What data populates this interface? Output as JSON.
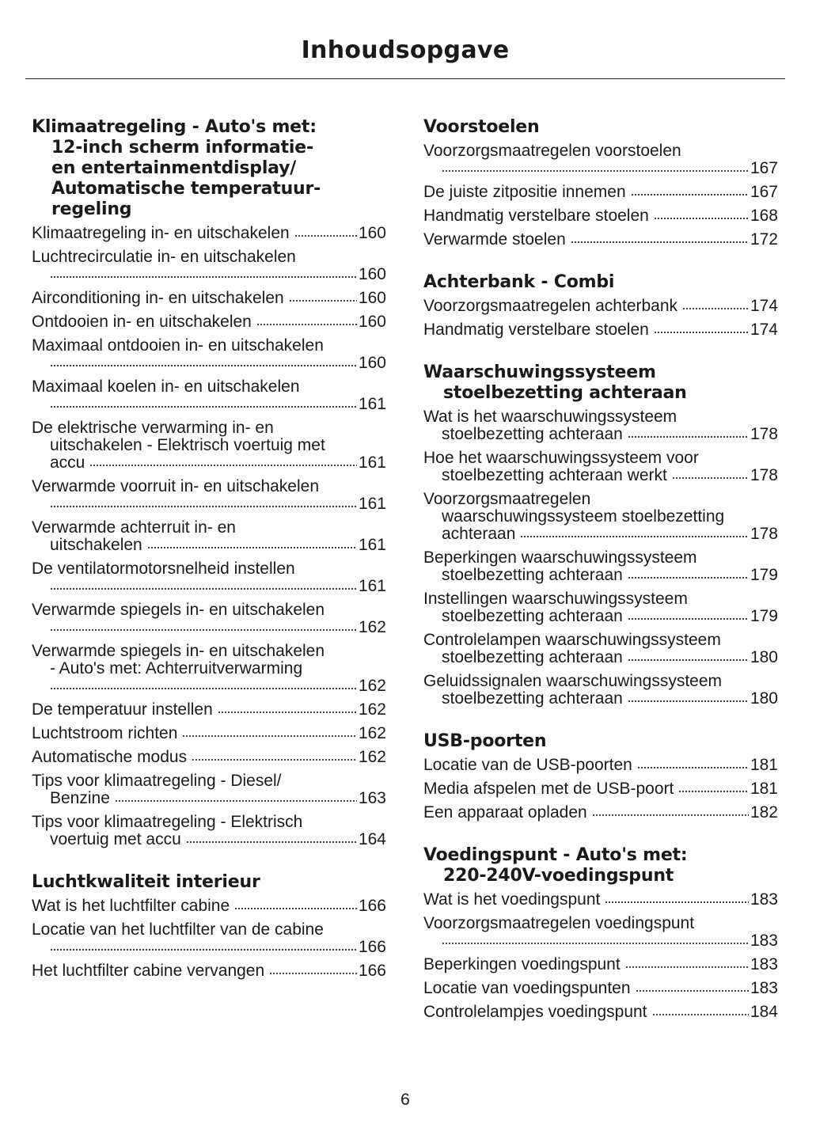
{
  "title": "Inhoudsopgave",
  "page_number": "6",
  "columns": [
    {
      "sections": [
        {
          "heading": [
            "Klimaatregeling - Auto's met:",
            "12-inch scherm informatie-",
            "en entertainmentdisplay/",
            "Automatische temperatuur-",
            "regeling"
          ],
          "entries": [
            {
              "lines": [
                "Klimaatregeling in- en uitschakelen"
              ],
              "page": "160"
            },
            {
              "lines": [
                "Luchtrecirculatie in- en uitschakelen",
                ""
              ],
              "page": "160"
            },
            {
              "lines": [
                "Airconditioning in- en uitschakelen"
              ],
              "page": "160"
            },
            {
              "lines": [
                "Ontdooien in- en uitschakelen"
              ],
              "page": "160"
            },
            {
              "lines": [
                "Maximaal ontdooien in- en uitschakelen",
                ""
              ],
              "page": "160"
            },
            {
              "lines": [
                "Maximaal koelen in- en uitschakelen",
                ""
              ],
              "page": "161"
            },
            {
              "lines": [
                "De elektrische verwarming in- en",
                "uitschakelen - Elektrisch voertuig met",
                "accu"
              ],
              "page": "161"
            },
            {
              "lines": [
                "Verwarmde voorruit in- en uitschakelen",
                ""
              ],
              "page": "161"
            },
            {
              "lines": [
                "Verwarmde achterruit in- en",
                "uitschakelen"
              ],
              "page": "161"
            },
            {
              "lines": [
                "De ventilatormotorsnelheid instellen",
                ""
              ],
              "page": "161"
            },
            {
              "lines": [
                "Verwarmde spiegels in- en uitschakelen",
                ""
              ],
              "page": "162"
            },
            {
              "lines": [
                "Verwarmde spiegels in- en uitschakelen",
                "- Auto's met: Achterruitverwarming",
                ""
              ],
              "page": "162"
            },
            {
              "lines": [
                "De temperatuur instellen"
              ],
              "page": "162"
            },
            {
              "lines": [
                "Luchtstroom richten"
              ],
              "page": "162"
            },
            {
              "lines": [
                "Automatische modus"
              ],
              "page": "162"
            },
            {
              "lines": [
                "Tips voor klimaatregeling - Diesel/",
                "Benzine"
              ],
              "page": "163"
            },
            {
              "lines": [
                "Tips voor klimaatregeling - Elektrisch",
                "voertuig met accu"
              ],
              "page": "164"
            }
          ]
        },
        {
          "heading": [
            "Luchtkwaliteit interieur"
          ],
          "entries": [
            {
              "lines": [
                "Wat is het luchtfilter cabine"
              ],
              "page": "166"
            },
            {
              "lines": [
                "Locatie van het luchtfilter van de cabine",
                ""
              ],
              "page": "166"
            },
            {
              "lines": [
                "Het luchtfilter cabine vervangen"
              ],
              "page": "166"
            }
          ]
        }
      ]
    },
    {
      "sections": [
        {
          "heading": [
            "Voorstoelen"
          ],
          "entries": [
            {
              "lines": [
                "Voorzorgsmaatregelen voorstoelen",
                ""
              ],
              "page": "167"
            },
            {
              "lines": [
                "De juiste zitpositie innemen"
              ],
              "page": "167"
            },
            {
              "lines": [
                "Handmatig verstelbare stoelen"
              ],
              "page": "168"
            },
            {
              "lines": [
                "Verwarmde stoelen"
              ],
              "page": "172"
            }
          ]
        },
        {
          "heading": [
            "Achterbank - Combi"
          ],
          "entries": [
            {
              "lines": [
                "Voorzorgsmaatregelen achterbank"
              ],
              "page": "174"
            },
            {
              "lines": [
                "Handmatig verstelbare stoelen"
              ],
              "page": "174"
            }
          ]
        },
        {
          "heading": [
            "Waarschuwingssysteem",
            "stoelbezetting achteraan"
          ],
          "entries": [
            {
              "lines": [
                "Wat is het waarschuwingssysteem",
                "stoelbezetting achteraan"
              ],
              "page": "178"
            },
            {
              "lines": [
                "Hoe het waarschuwingssysteem voor",
                "stoelbezetting achteraan werkt"
              ],
              "page": "178"
            },
            {
              "lines": [
                "Voorzorgsmaatregelen",
                "waarschuwingssysteem stoelbezetting",
                "achteraan"
              ],
              "page": "178"
            },
            {
              "lines": [
                "Beperkingen waarschuwingssysteem",
                "stoelbezetting achteraan"
              ],
              "page": "179"
            },
            {
              "lines": [
                "Instellingen waarschuwingssysteem",
                "stoelbezetting achteraan"
              ],
              "page": "179"
            },
            {
              "lines": [
                "Controlelampen waarschuwingssysteem",
                "stoelbezetting achteraan"
              ],
              "page": "180"
            },
            {
              "lines": [
                "Geluidssignalen waarschuwingssysteem",
                "stoelbezetting achteraan"
              ],
              "page": "180"
            }
          ]
        },
        {
          "heading": [
            "USB-poorten"
          ],
          "entries": [
            {
              "lines": [
                "Locatie van de USB-poorten"
              ],
              "page": "181"
            },
            {
              "lines": [
                "Media afspelen met de USB-poort"
              ],
              "page": "181"
            },
            {
              "lines": [
                "Een apparaat opladen"
              ],
              "page": "182"
            }
          ]
        },
        {
          "heading": [
            "Voedingspunt - Auto's met:",
            "220-240V-voedingspunt"
          ],
          "entries": [
            {
              "lines": [
                "Wat is het voedingspunt"
              ],
              "page": "183"
            },
            {
              "lines": [
                "Voorzorgsmaatregelen voedingspunt",
                ""
              ],
              "page": "183"
            },
            {
              "lines": [
                "Beperkingen voedingspunt"
              ],
              "page": "183"
            },
            {
              "lines": [
                "Locatie van voedingspunten"
              ],
              "page": "183"
            },
            {
              "lines": [
                "Controlelampjes voedingspunt"
              ],
              "page": "184"
            }
          ]
        }
      ]
    }
  ]
}
